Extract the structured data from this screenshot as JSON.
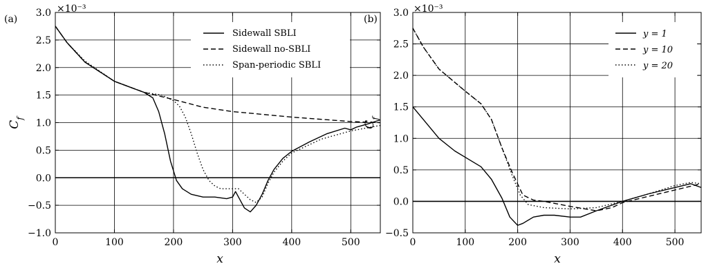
{
  "chart_data": [
    {
      "type": "line",
      "panel_label": "(a)",
      "xlabel": "x",
      "ylabel": "C_f",
      "y_multiplier": "×10⁻³",
      "xlim": [
        0,
        550
      ],
      "ylim": [
        -1.0,
        3.0
      ],
      "xticks": [
        0,
        100,
        200,
        300,
        400,
        500
      ],
      "yticks": [
        -1.0,
        -0.5,
        0.0,
        0.5,
        1.0,
        1.5,
        2.0,
        2.5,
        3.0
      ],
      "xtick_labels": [
        "0",
        "100",
        "200",
        "300",
        "400",
        "500"
      ],
      "ytick_labels": [
        "−1.0",
        "−0.5",
        "0.0",
        "0.5",
        "1.0",
        "1.5",
        "2.0",
        "2.5",
        "3.0"
      ],
      "grid": true,
      "legend_position": "top-right",
      "series": [
        {
          "name": "Sidewall SBLI",
          "style": "solid",
          "points": [
            [
              0,
              2.75
            ],
            [
              20,
              2.45
            ],
            [
              50,
              2.1
            ],
            [
              100,
              1.75
            ],
            [
              130,
              1.63
            ],
            [
              150,
              1.55
            ],
            [
              165,
              1.45
            ],
            [
              175,
              1.2
            ],
            [
              185,
              0.8
            ],
            [
              195,
              0.3
            ],
            [
              205,
              -0.05
            ],
            [
              215,
              -0.2
            ],
            [
              230,
              -0.3
            ],
            [
              250,
              -0.35
            ],
            [
              270,
              -0.35
            ],
            [
              290,
              -0.38
            ],
            [
              300,
              -0.35
            ],
            [
              305,
              -0.25
            ],
            [
              310,
              -0.35
            ],
            [
              320,
              -0.55
            ],
            [
              330,
              -0.62
            ],
            [
              340,
              -0.5
            ],
            [
              350,
              -0.3
            ],
            [
              360,
              -0.05
            ],
            [
              370,
              0.15
            ],
            [
              385,
              0.35
            ],
            [
              400,
              0.48
            ],
            [
              430,
              0.65
            ],
            [
              460,
              0.8
            ],
            [
              490,
              0.9
            ],
            [
              500,
              0.87
            ],
            [
              510,
              0.92
            ],
            [
              530,
              0.98
            ],
            [
              550,
              1.05
            ]
          ]
        },
        {
          "name": "Sidewall no-SBLI",
          "style": "dashed",
          "points": [
            [
              0,
              2.75
            ],
            [
              20,
              2.45
            ],
            [
              50,
              2.1
            ],
            [
              100,
              1.75
            ],
            [
              150,
              1.55
            ],
            [
              200,
              1.42
            ],
            [
              250,
              1.28
            ],
            [
              300,
              1.2
            ],
            [
              350,
              1.15
            ],
            [
              400,
              1.1
            ],
            [
              450,
              1.06
            ],
            [
              500,
              1.02
            ],
            [
              550,
              1.0
            ]
          ]
        },
        {
          "name": "Span-periodic SBLI",
          "style": "dotted",
          "points": [
            [
              0,
              2.75
            ],
            [
              20,
              2.45
            ],
            [
              50,
              2.12
            ],
            [
              100,
              1.75
            ],
            [
              150,
              1.55
            ],
            [
              180,
              1.5
            ],
            [
              200,
              1.4
            ],
            [
              210,
              1.3
            ],
            [
              220,
              1.1
            ],
            [
              230,
              0.8
            ],
            [
              240,
              0.45
            ],
            [
              250,
              0.15
            ],
            [
              260,
              -0.05
            ],
            [
              270,
              -0.15
            ],
            [
              280,
              -0.2
            ],
            [
              300,
              -0.2
            ],
            [
              310,
              -0.2
            ],
            [
              320,
              -0.3
            ],
            [
              330,
              -0.4
            ],
            [
              340,
              -0.45
            ],
            [
              350,
              -0.35
            ],
            [
              360,
              -0.1
            ],
            [
              370,
              0.1
            ],
            [
              385,
              0.3
            ],
            [
              400,
              0.45
            ],
            [
              450,
              0.7
            ],
            [
              500,
              0.85
            ],
            [
              550,
              0.95
            ]
          ]
        }
      ]
    },
    {
      "type": "line",
      "panel_label": "(b)",
      "xlabel": "x",
      "ylabel": "C_f",
      "y_multiplier": "×10⁻³",
      "xlim": [
        0,
        550
      ],
      "ylim": [
        -0.5,
        3.0
      ],
      "xticks": [
        0,
        100,
        200,
        300,
        400,
        500
      ],
      "yticks": [
        -0.5,
        0.0,
        0.5,
        1.0,
        1.5,
        2.0,
        2.5,
        3.0
      ],
      "xtick_labels": [
        "0",
        "100",
        "200",
        "300",
        "400",
        "500"
      ],
      "ytick_labels": [
        "−0.5",
        "0.0",
        "0.5",
        "1.0",
        "1.5",
        "2.0",
        "2.5",
        "3.0"
      ],
      "grid": true,
      "legend_position": "top-right",
      "series": [
        {
          "name": "y = 1",
          "style": "solid",
          "points": [
            [
              0,
              1.5
            ],
            [
              20,
              1.3
            ],
            [
              50,
              1.0
            ],
            [
              80,
              0.8
            ],
            [
              110,
              0.65
            ],
            [
              130,
              0.55
            ],
            [
              150,
              0.35
            ],
            [
              170,
              0.05
            ],
            [
              185,
              -0.25
            ],
            [
              200,
              -0.38
            ],
            [
              210,
              -0.35
            ],
            [
              230,
              -0.25
            ],
            [
              250,
              -0.22
            ],
            [
              270,
              -0.22
            ],
            [
              300,
              -0.25
            ],
            [
              320,
              -0.25
            ],
            [
              350,
              -0.15
            ],
            [
              400,
              0.0
            ],
            [
              450,
              0.12
            ],
            [
              500,
              0.22
            ],
            [
              530,
              0.28
            ],
            [
              550,
              0.22
            ]
          ]
        },
        {
          "name": "y = 10",
          "style": "dashed",
          "points": [
            [
              0,
              2.75
            ],
            [
              20,
              2.45
            ],
            [
              50,
              2.1
            ],
            [
              100,
              1.75
            ],
            [
              130,
              1.55
            ],
            [
              150,
              1.3
            ],
            [
              170,
              0.85
            ],
            [
              190,
              0.45
            ],
            [
              210,
              0.1
            ],
            [
              230,
              0.02
            ],
            [
              250,
              0.0
            ],
            [
              300,
              -0.08
            ],
            [
              350,
              -0.15
            ],
            [
              380,
              -0.1
            ],
            [
              400,
              -0.02
            ],
            [
              450,
              0.08
            ],
            [
              500,
              0.18
            ],
            [
              550,
              0.28
            ]
          ]
        },
        {
          "name": "y = 20",
          "style": "dotted",
          "points": [
            [
              0,
              2.75
            ],
            [
              20,
              2.45
            ],
            [
              50,
              2.1
            ],
            [
              100,
              1.75
            ],
            [
              130,
              1.55
            ],
            [
              150,
              1.3
            ],
            [
              170,
              0.85
            ],
            [
              190,
              0.4
            ],
            [
              205,
              0.1
            ],
            [
              220,
              -0.05
            ],
            [
              250,
              -0.1
            ],
            [
              300,
              -0.12
            ],
            [
              350,
              -0.1
            ],
            [
              400,
              0.0
            ],
            [
              450,
              0.12
            ],
            [
              500,
              0.25
            ],
            [
              530,
              0.3
            ],
            [
              550,
              0.28
            ]
          ]
        }
      ]
    }
  ]
}
